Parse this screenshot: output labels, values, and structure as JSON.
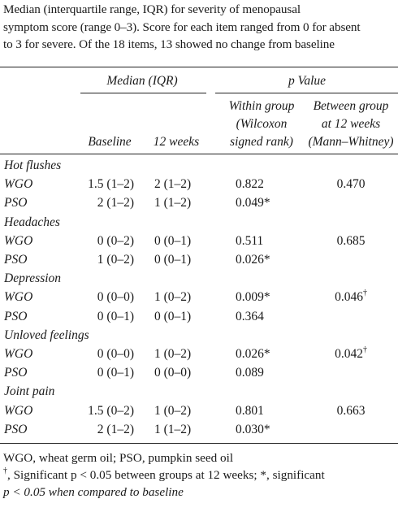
{
  "caption": [
    "Median (interquartile range, IQR) for severity of menopausal",
    "symptom score (range 0–3). Score for each item ranged from 0 for absent",
    "to 3 for severe. Of the 18 items, 13 showed no change from baseline"
  ],
  "header": {
    "median_group": "Median (IQR)",
    "p_group": "p Value",
    "baseline": "Baseline",
    "weeks12": "12 weeks",
    "within_1": "Within group",
    "within_2": "(Wilcoxon",
    "within_3": "signed rank)",
    "between_1": "Between group",
    "between_2": "at 12 weeks",
    "between_3": "(Mann–Whitney)"
  },
  "symptoms": [
    {
      "name": "Hot flushes",
      "rows": [
        {
          "group": "WGO",
          "baseline": "1.5 (1–2)",
          "weeks12": "2 (1–2)",
          "within": "0.822",
          "between": "0.470"
        },
        {
          "group": "PSO",
          "baseline": "2 (1–2)",
          "weeks12": "1 (1–2)",
          "within": "0.049*",
          "between": ""
        }
      ]
    },
    {
      "name": "Headaches",
      "rows": [
        {
          "group": "WGO",
          "baseline": "0 (0–2)",
          "weeks12": "0 (0–1)",
          "within": "0.511",
          "between": "0.685"
        },
        {
          "group": "PSO",
          "baseline": "1 (0–2)",
          "weeks12": "0 (0–1)",
          "within": "0.026*",
          "between": ""
        }
      ]
    },
    {
      "name": "Depression",
      "rows": [
        {
          "group": "WGO",
          "baseline": "0 (0–0)",
          "weeks12": "1 (0–2)",
          "within": "0.009*",
          "between": "0.046",
          "between_sup": "†"
        },
        {
          "group": "PSO",
          "baseline": "0 (0–1)",
          "weeks12": "0 (0–1)",
          "within": "0.364",
          "between": ""
        }
      ]
    },
    {
      "name": "Unloved feelings",
      "rows": [
        {
          "group": "WGO",
          "baseline": "0 (0–0)",
          "weeks12": "1 (0–2)",
          "within": "0.026*",
          "between": "0.042",
          "between_sup": "†"
        },
        {
          "group": "PSO",
          "baseline": "0 (0–1)",
          "weeks12": "0 (0–0)",
          "within": "0.089",
          "between": ""
        }
      ]
    },
    {
      "name": "Joint pain",
      "rows": [
        {
          "group": "WGO",
          "baseline": "1.5 (0–2)",
          "weeks12": "1 (0–2)",
          "within": "0.801",
          "between": "0.663"
        },
        {
          "group": "PSO",
          "baseline": "2 (1–2)",
          "weeks12": "1 (1–2)",
          "within": "0.030*",
          "between": ""
        }
      ]
    }
  ],
  "footnotes": {
    "line1": "WGO, wheat germ oil; PSO, pumpkin seed oil",
    "line2_sup": "†",
    "line2": ", Significant p < 0.05 between groups at 12 weeks; *, significant",
    "line3": "p < 0.05 when compared to baseline"
  }
}
